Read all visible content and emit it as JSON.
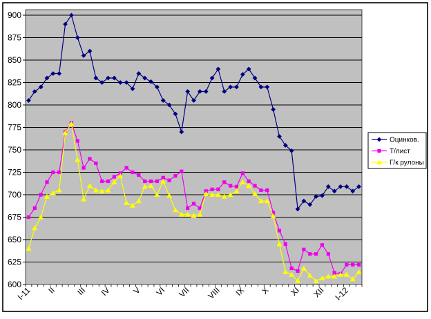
{
  "window": {
    "background": "#ffffff",
    "border_color": "#000000"
  },
  "chart_data": {
    "type": "line",
    "title": "",
    "plot_bg": "#c0c0c0",
    "grid": true,
    "legend_position": "right",
    "ylim": [
      600,
      900
    ],
    "y_tick_step": 25,
    "y_ticks": [
      600,
      625,
      650,
      675,
      700,
      725,
      750,
      775,
      800,
      825,
      850,
      875,
      900
    ],
    "x_labels": [
      "I-11",
      "II",
      "III",
      "IV",
      "V",
      "VI",
      "VII",
      "VIII",
      "IX",
      "X",
      "XI",
      "XII",
      "I-12"
    ],
    "x_label_positions": [
      0,
      4,
      9,
      13,
      18,
      22,
      26,
      31,
      35,
      39,
      44,
      48,
      52
    ],
    "n_points": 55,
    "series": [
      {
        "name": "Оцинков.",
        "slug": "ocinkov",
        "color": "#000080",
        "marker": "diamond",
        "values": [
          805,
          815,
          820,
          830,
          835,
          835,
          890,
          900,
          875,
          855,
          860,
          830,
          825,
          830,
          830,
          825,
          825,
          818,
          835,
          830,
          826,
          820,
          805,
          800,
          790,
          770,
          815,
          805,
          815,
          815,
          830,
          840,
          815,
          820,
          820,
          834,
          840,
          830,
          820,
          820,
          795,
          765,
          755,
          749,
          684,
          693,
          689,
          698,
          699,
          709,
          704,
          709,
          709,
          704,
          709
        ]
      },
      {
        "name": "Т/лист",
        "slug": "t-list",
        "color": "#ee00ee",
        "marker": "square",
        "values": [
          675,
          685,
          700,
          714,
          725,
          725,
          770,
          780,
          760,
          730,
          740,
          735,
          715,
          715,
          720,
          724,
          730,
          725,
          722,
          715,
          715,
          715,
          719,
          716,
          721,
          726,
          685,
          690,
          685,
          704,
          706,
          706,
          714,
          710,
          709,
          724,
          715,
          710,
          705,
          705,
          680,
          660,
          645,
          618,
          615,
          639,
          634,
          634,
          644,
          634,
          613,
          612,
          622,
          622,
          622
        ]
      },
      {
        "name": "Г/к рулоны",
        "slug": "gk-rulony",
        "color": "#ffff00",
        "marker": "triangle",
        "values": [
          640,
          663,
          675,
          698,
          702,
          705,
          769,
          779,
          739,
          695,
          710,
          705,
          704,
          705,
          714,
          721,
          691,
          688,
          693,
          709,
          710,
          700,
          715,
          699,
          683,
          678,
          678,
          677,
          678,
          701,
          700,
          700,
          698,
          700,
          704,
          714,
          710,
          701,
          693,
          693,
          676,
          645,
          614,
          611,
          604,
          618,
          610,
          604,
          607,
          609,
          609,
          611,
          611,
          606,
          614
        ]
      }
    ]
  }
}
